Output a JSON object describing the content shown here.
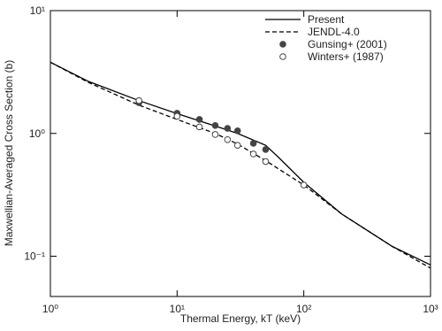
{
  "chart_data": {
    "type": "line",
    "xlabel": "Thermal Energy, kT (keV)",
    "ylabel": "Maxwellian-Averaged Cross Section (b)",
    "xscale": "log",
    "yscale": "log",
    "xlim": [
      1,
      1000
    ],
    "ylim": [
      0.047,
      10
    ],
    "xticks": [
      {
        "value": 1,
        "label": "10⁰"
      },
      {
        "value": 10,
        "label": "10¹"
      },
      {
        "value": 100,
        "label": "10²"
      },
      {
        "value": 1000,
        "label": "10³"
      }
    ],
    "yticks": [
      {
        "value": 0.1,
        "label": "10⁻¹"
      },
      {
        "value": 1,
        "label": "10⁰"
      },
      {
        "value": 10,
        "label": "10¹"
      }
    ],
    "legend": "top-right",
    "series": [
      {
        "name": "Present",
        "color": "#000000",
        "style": "solid",
        "x": [
          1,
          2,
          5,
          10,
          20,
          30,
          50,
          63,
          100,
          200,
          500,
          1000
        ],
        "values": [
          3.8,
          2.65,
          1.85,
          1.45,
          1.15,
          1.0,
          0.8,
          0.64,
          0.4,
          0.22,
          0.12,
          0.085
        ]
      },
      {
        "name": "JENDL-4.0",
        "color": "#000000",
        "style": "dashed",
        "x": [
          1,
          2,
          5,
          10,
          20,
          30,
          50,
          100,
          200,
          500,
          1000
        ],
        "values": [
          3.8,
          2.6,
          1.7,
          1.3,
          1.0,
          0.82,
          0.6,
          0.38,
          0.22,
          0.12,
          0.08
        ]
      },
      {
        "name": "Gunsing+ (2001)",
        "color": "#444444",
        "style": "filled",
        "x": [
          5,
          10,
          15,
          20,
          25,
          30,
          40,
          50
        ],
        "values": [
          1.78,
          1.46,
          1.3,
          1.16,
          1.1,
          1.05,
          0.83,
          0.74
        ]
      },
      {
        "name": "Winters+ (1987)",
        "color": "#444444",
        "style": "open",
        "x": [
          5,
          10,
          15,
          20,
          25,
          30,
          40,
          50,
          100
        ],
        "values": [
          1.85,
          1.38,
          1.13,
          0.98,
          0.89,
          0.8,
          0.68,
          0.59,
          0.38
        ]
      }
    ]
  }
}
